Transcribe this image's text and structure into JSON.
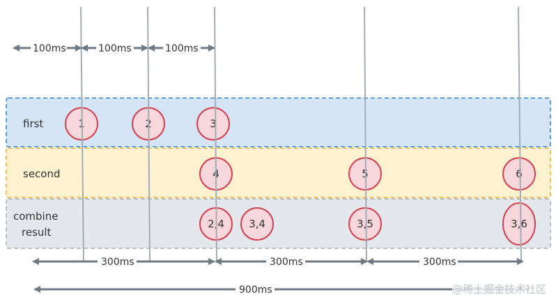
{
  "rows": {
    "first": {
      "label": "first",
      "fill": "#d6e5f5",
      "border": "#2f80d0"
    },
    "second": {
      "label": "second",
      "fill": "#fdf2cf",
      "border": "#f0ac2a"
    },
    "combine": {
      "label_line1": "combine",
      "label_line2": "result",
      "fill": "#e4e8ec",
      "border": "#a6adb4"
    }
  },
  "first_values": [
    "1",
    "2",
    "3"
  ],
  "second_values": [
    "4",
    "5",
    "6"
  ],
  "combine_values": [
    "2,4",
    "3,4",
    "3,5",
    "3,6"
  ],
  "intervals": {
    "top": [
      "100ms",
      "100ms",
      "100ms"
    ],
    "middle": [
      "300ms",
      "300ms",
      "300ms"
    ],
    "bottom": "900ms"
  },
  "watermark": "@稀土掘金技术社区"
}
